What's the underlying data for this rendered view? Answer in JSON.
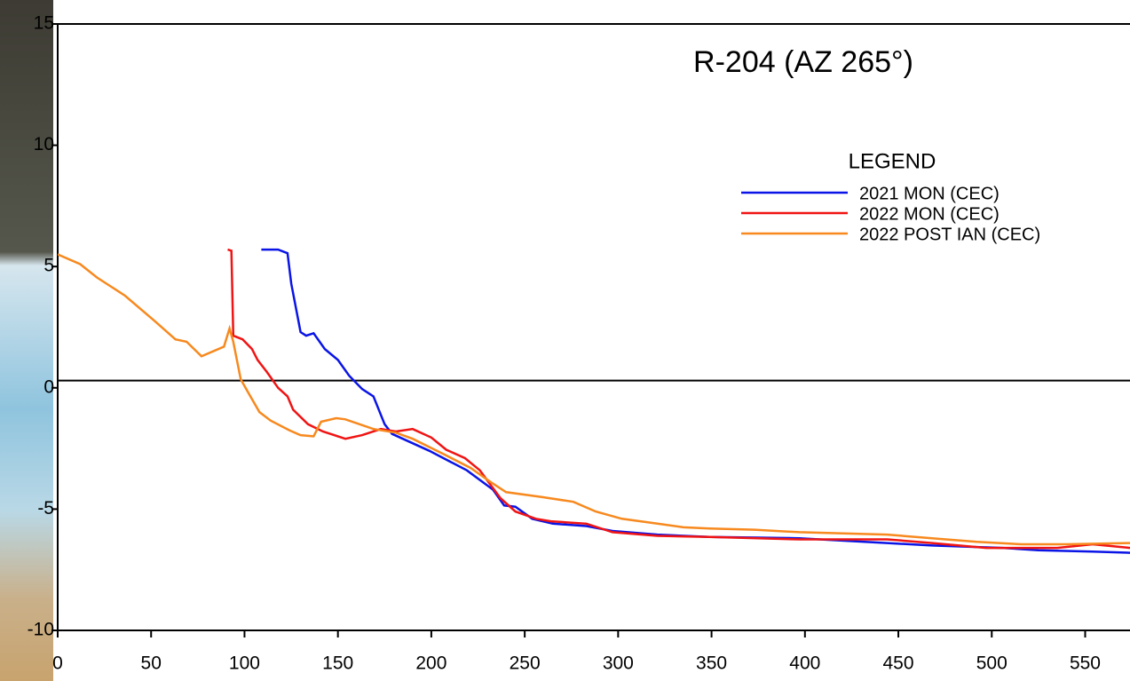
{
  "chart_data": {
    "type": "line",
    "title": "R-204 (AZ 265°)",
    "legend_title": "LEGEND",
    "legend": "upper right",
    "xlim": [
      0,
      574
    ],
    "ylim": [
      -10,
      15
    ],
    "xticks": [
      0,
      50,
      100,
      150,
      200,
      250,
      300,
      350,
      400,
      450,
      500,
      550
    ],
    "yticks": [
      -10,
      -5,
      0,
      5,
      10,
      15
    ],
    "hline": 0.3,
    "series": [
      {
        "name": "2021 MON (CEC)",
        "color": "#0a14e6",
        "x": [
          109,
          118,
          123,
          125,
          130,
          133,
          137,
          143,
          150,
          156,
          163,
          169,
          175,
          179,
          199,
          219,
          233,
          239,
          245,
          254,
          265,
          283,
          297,
          321,
          349,
          397,
          444,
          468,
          506,
          525,
          554,
          574
        ],
        "values": [
          5.7,
          5.7,
          5.55,
          4.3,
          2.3,
          2.15,
          2.25,
          1.6,
          1.15,
          0.5,
          -0.05,
          -0.35,
          -1.5,
          -1.9,
          -2.6,
          -3.4,
          -4.2,
          -4.85,
          -4.9,
          -5.4,
          -5.6,
          -5.7,
          -5.9,
          -6.05,
          -6.15,
          -6.2,
          -6.4,
          -6.5,
          -6.6,
          -6.7,
          -6.75,
          -6.8
        ]
      },
      {
        "name": "2022 MON (CEC)",
        "color": "#f01414",
        "x": [
          91,
          93,
          94,
          99,
          104,
          107,
          112,
          118,
          123,
          126,
          134,
          142,
          146,
          154,
          163,
          173,
          181,
          190,
          200,
          208,
          218,
          226,
          237,
          245,
          256,
          264,
          283,
          297,
          321,
          349,
          397,
          444,
          468,
          497,
          535,
          554,
          574
        ],
        "values": [
          5.7,
          5.65,
          2.15,
          2.0,
          1.6,
          1.15,
          0.65,
          0,
          -0.35,
          -0.9,
          -1.5,
          -1.8,
          -1.9,
          -2.1,
          -1.95,
          -1.7,
          -1.8,
          -1.7,
          -2.05,
          -2.55,
          -2.9,
          -3.4,
          -4.55,
          -5.1,
          -5.4,
          -5.5,
          -5.6,
          -5.95,
          -6.1,
          -6.15,
          -6.25,
          -6.25,
          -6.4,
          -6.6,
          -6.6,
          -6.45,
          -6.6
        ]
      },
      {
        "name": "2022 POST IAN (CEC)",
        "color": "#f7891e",
        "x": [
          0,
          12,
          21,
          36,
          52,
          63,
          69,
          77,
          89,
          92,
          94,
          98,
          102,
          108,
          114,
          124,
          130,
          137,
          141,
          149,
          154,
          169,
          181,
          190,
          207,
          221,
          232,
          240,
          259,
          276,
          288,
          302,
          321,
          335,
          349,
          373,
          397,
          444,
          468,
          492,
          516,
          540,
          574
        ],
        "values": [
          5.5,
          5.1,
          4.55,
          3.8,
          2.75,
          2.0,
          1.9,
          1.3,
          1.7,
          2.45,
          1.9,
          0.35,
          -0.2,
          -1.0,
          -1.35,
          -1.75,
          -1.95,
          -2.0,
          -1.4,
          -1.25,
          -1.3,
          -1.7,
          -1.85,
          -2.1,
          -2.75,
          -3.3,
          -3.9,
          -4.3,
          -4.5,
          -4.7,
          -5.1,
          -5.4,
          -5.6,
          -5.75,
          -5.8,
          -5.85,
          -5.95,
          -6.05,
          -6.2,
          -6.35,
          -6.45,
          -6.45,
          -6.4
        ]
      }
    ]
  }
}
